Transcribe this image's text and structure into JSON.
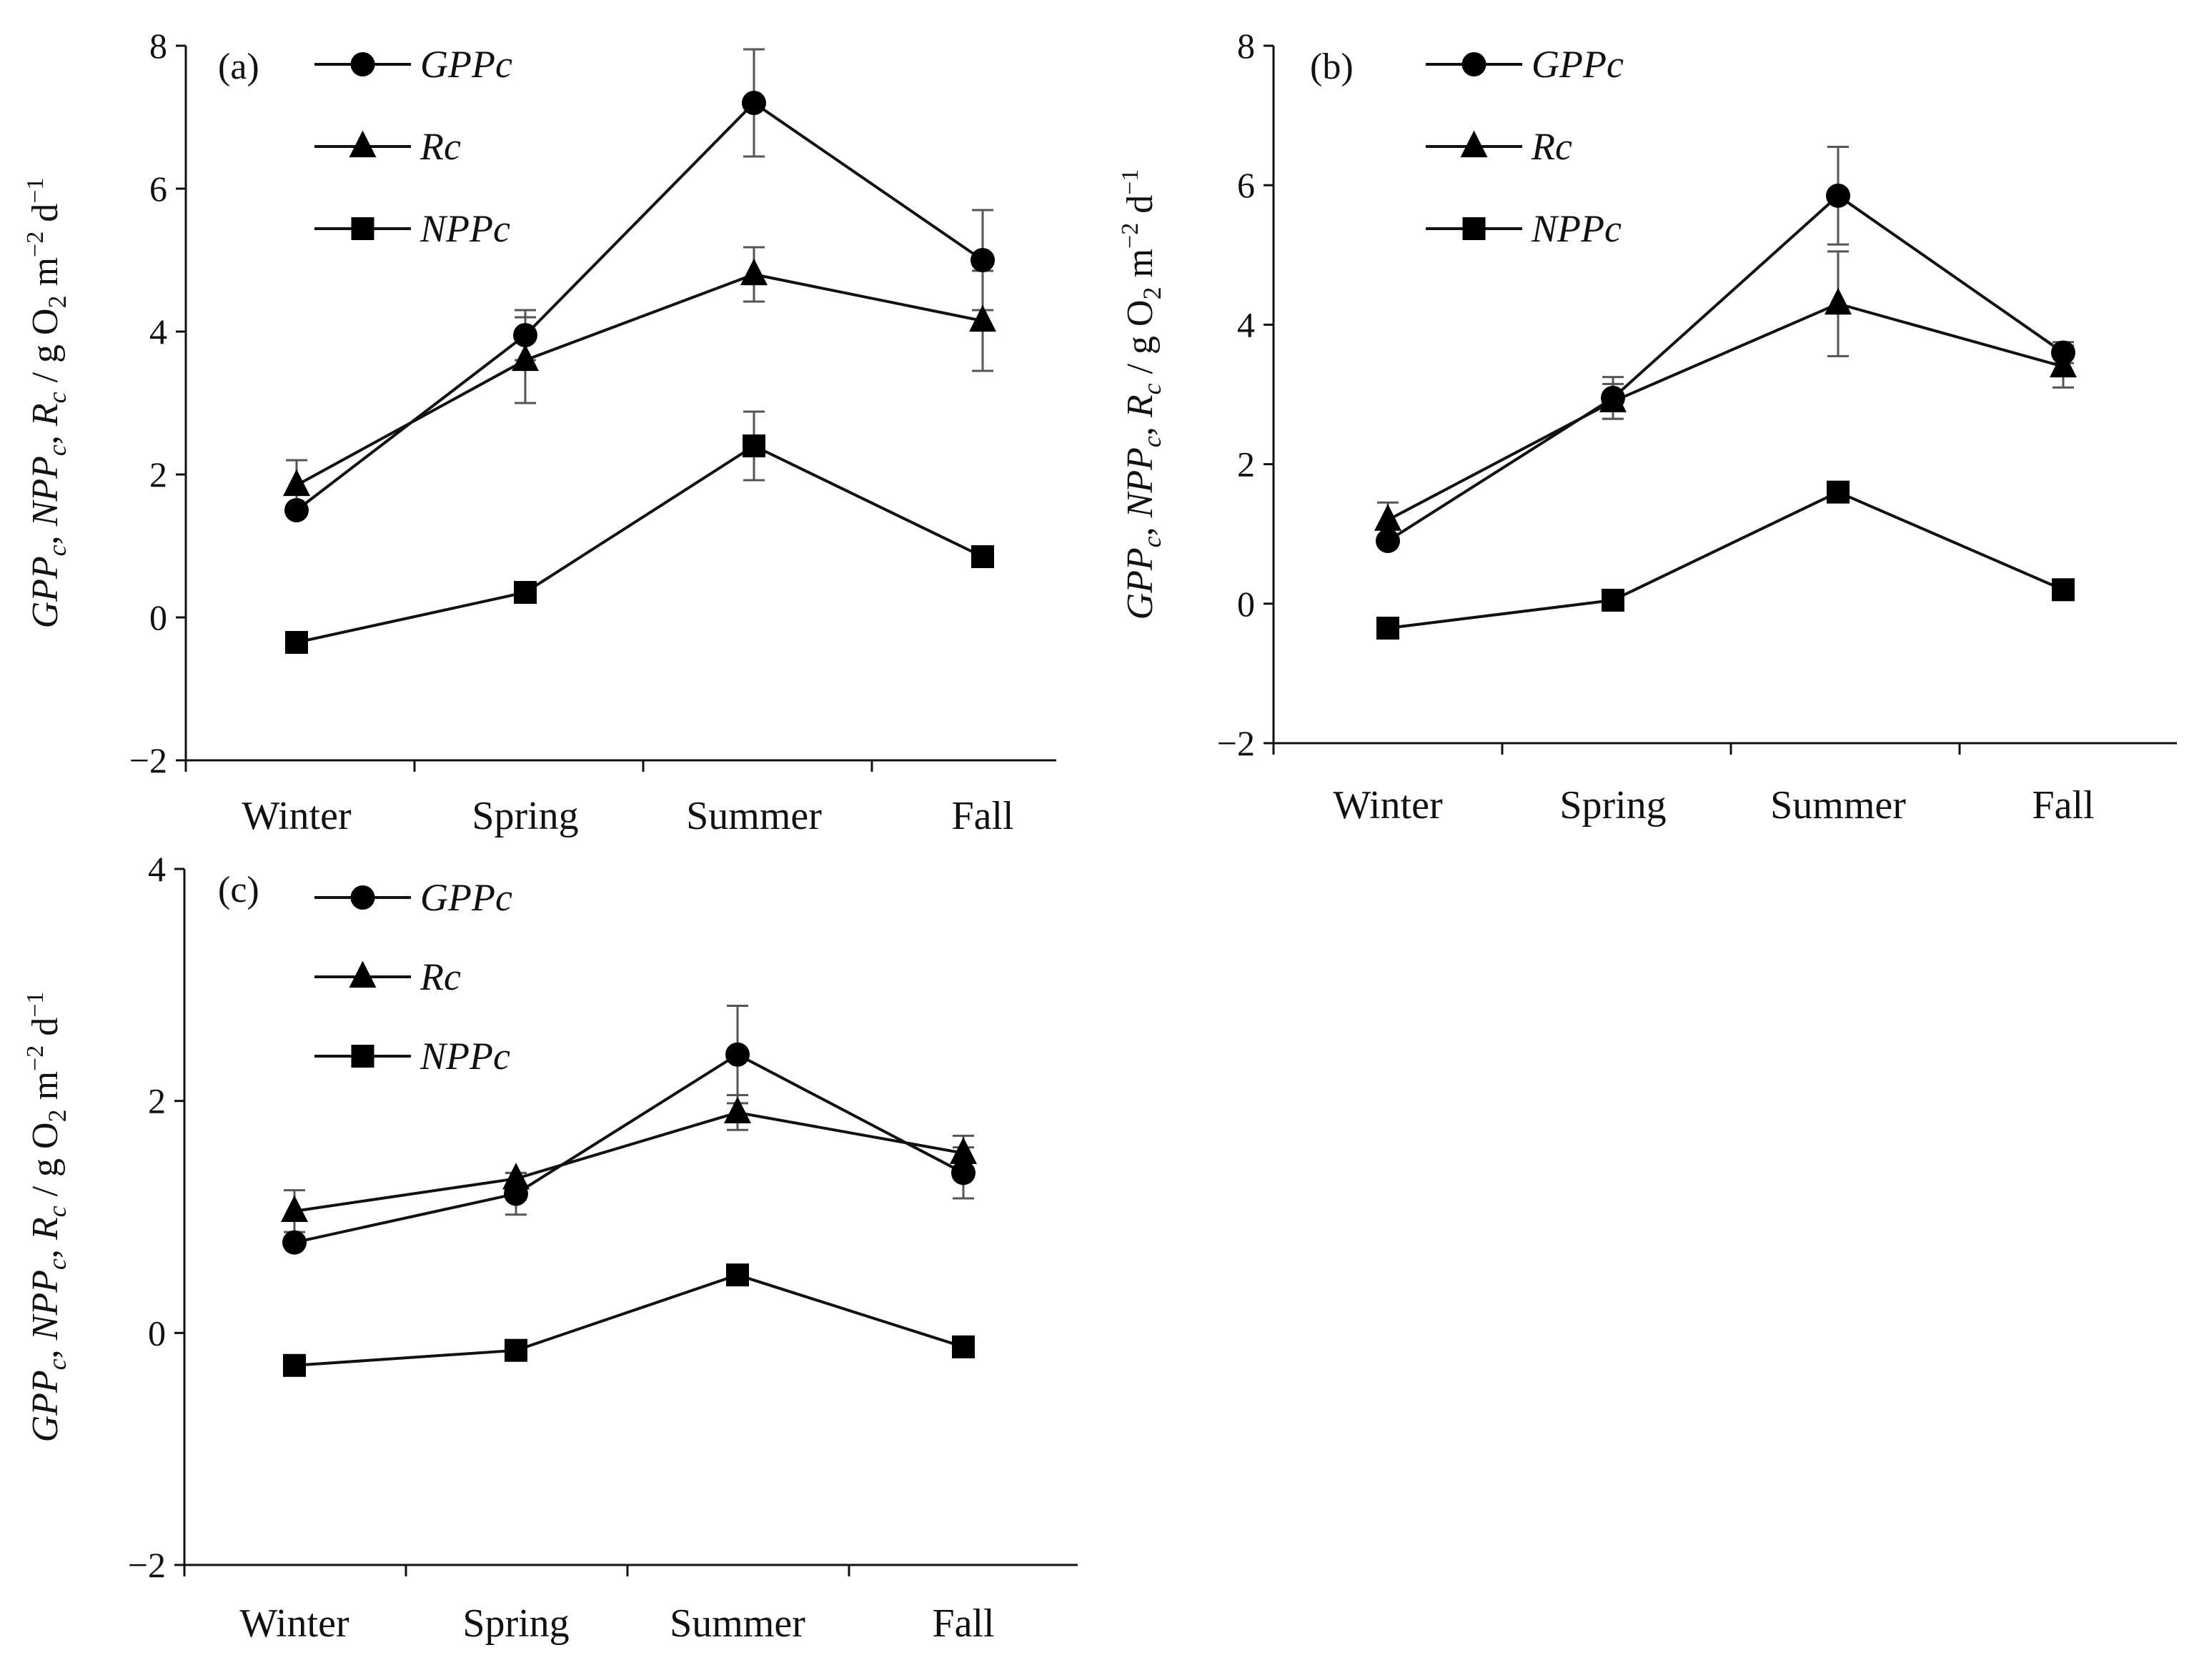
{
  "chart_data": [
    {
      "type": "line",
      "panel_label": "(a)",
      "categories": [
        "Winter",
        "Spring",
        "Summer",
        "Fall"
      ],
      "ylabel": "GPPc, NPPc, Rc / g O2 m−2 d−1",
      "ylabel_parts": {
        "gpp": "GPP",
        "npp": "NPP",
        "r": "R",
        "sub": "c",
        "sep1": ", ",
        "sep2": ", ",
        "units_a": " / g O",
        "units_two": "2",
        "units_b": " m",
        "units_exp1": "−2",
        "units_c": " d",
        "units_exp2": "−1"
      },
      "ylim": [
        -2,
        8
      ],
      "yticks": [
        -2,
        0,
        2,
        4,
        6,
        8
      ],
      "ytick_labels": [
        "−2",
        "0",
        "2",
        "4",
        "6",
        "8"
      ],
      "series": [
        {
          "name": "GPPc",
          "marker": "circle",
          "values": [
            1.5,
            3.95,
            7.2,
            5.0
          ],
          "errors": [
            0,
            0.35,
            0.75,
            0.7
          ]
        },
        {
          "name": "Rc",
          "marker": "triangle",
          "values": [
            1.85,
            3.6,
            4.8,
            4.15
          ],
          "errors": [
            0.35,
            0.6,
            0.38,
            0.7
          ]
        },
        {
          "name": "NPPc",
          "marker": "square",
          "values": [
            -0.35,
            0.35,
            2.4,
            0.85
          ],
          "errors": [
            0,
            0,
            0.48,
            0
          ]
        }
      ]
    },
    {
      "type": "line",
      "panel_label": "(b)",
      "categories": [
        "Winter",
        "Spring",
        "Summer",
        "Fall"
      ],
      "ylabel": "GPPc, NPPc, Rc / g O2 m−2 d−1",
      "ylabel_parts": {
        "gpp": "GPP",
        "npp": "NPP",
        "r": "R",
        "sub": "c",
        "sep1": ", ",
        "sep2": ", ",
        "units_a": " / g O",
        "units_two": "2",
        "units_b": " m",
        "units_exp1": "−2",
        "units_c": " d",
        "units_exp2": "−1"
      },
      "ylim": [
        -2,
        8
      ],
      "yticks": [
        -2,
        0,
        2,
        4,
        6,
        8
      ],
      "ytick_labels": [
        "−2",
        "0",
        "2",
        "4",
        "6",
        "8"
      ],
      "series": [
        {
          "name": "GPPc",
          "marker": "circle",
          "values": [
            0.9,
            2.95,
            5.85,
            3.6
          ],
          "errors": [
            0,
            0.3,
            0.7,
            0.15
          ]
        },
        {
          "name": "Rc",
          "marker": "triangle",
          "values": [
            1.2,
            2.9,
            4.3,
            3.4
          ],
          "errors": [
            0.25,
            0.25,
            0.75,
            0.3
          ]
        },
        {
          "name": "NPPc",
          "marker": "square",
          "values": [
            -0.35,
            0.05,
            1.6,
            0.2
          ],
          "errors": [
            0,
            0,
            0,
            0
          ]
        }
      ]
    },
    {
      "type": "line",
      "panel_label": "(c)",
      "categories": [
        "Winter",
        "Spring",
        "Summer",
        "Fall"
      ],
      "ylabel": "GPPc, NPPc, Rc / g O2 m−2 d−1",
      "ylabel_parts": {
        "gpp": "GPP",
        "npp": "NPP",
        "r": "R",
        "sub": "c",
        "sep1": ", ",
        "sep2": ", ",
        "units_a": " / g O",
        "units_two": "2",
        "units_b": " m",
        "units_exp1": "−2",
        "units_c": " d",
        "units_exp2": "−1"
      },
      "ylim": [
        -2,
        4
      ],
      "yticks": [
        -2,
        0,
        2,
        4
      ],
      "ytick_labels": [
        "−2",
        "0",
        "2",
        "4"
      ],
      "series": [
        {
          "name": "GPPc",
          "marker": "circle",
          "values": [
            0.78,
            1.2,
            2.4,
            1.38
          ],
          "errors": [
            0,
            0.18,
            0.42,
            0.22
          ]
        },
        {
          "name": "Rc",
          "marker": "triangle",
          "values": [
            1.05,
            1.33,
            1.9,
            1.55
          ],
          "errors": [
            0.18,
            0.05,
            0.15,
            0.15
          ]
        },
        {
          "name": "NPPc",
          "marker": "square",
          "values": [
            -0.28,
            -0.15,
            0.5,
            -0.12
          ],
          "errors": [
            0,
            0,
            0,
            0
          ]
        }
      ]
    }
  ]
}
